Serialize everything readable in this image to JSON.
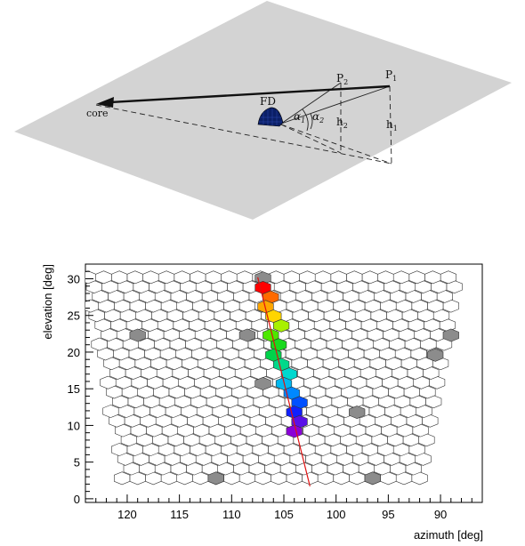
{
  "geometry_sketch": {
    "labels": {
      "core": "core",
      "fd": "FD",
      "p1": "P",
      "p1_sub": "1",
      "p2": "P",
      "p2_sub": "2",
      "alpha1": "α",
      "alpha1_sub": "1",
      "alpha2": "α",
      "alpha2_sub": "2",
      "h1": "h",
      "h1_sub": "1",
      "h2": "h",
      "h2_sub": "2"
    },
    "colors": {
      "plane": "#d3d3d3",
      "detector": "#0b1f66"
    }
  },
  "chart_data": {
    "type": "scatter",
    "title": "",
    "xlabel": "azimuth  [deg]",
    "ylabel": "elevation  [deg]",
    "xlim": [
      124,
      86
    ],
    "ylim": [
      -0.5,
      32
    ],
    "x_reversed": true,
    "xticks": [
      120,
      115,
      110,
      105,
      100,
      95,
      90
    ],
    "xtick_labels": [
      "120",
      "115",
      "110",
      "105",
      "100",
      "95",
      "90"
    ],
    "yticks": [
      0,
      5,
      10,
      15,
      20,
      25,
      30
    ],
    "ytick_labels": [
      "0",
      "5",
      "10",
      "15",
      "20",
      "25",
      "30"
    ],
    "grid": false,
    "camera": {
      "rows": 22,
      "y_start": 2.8,
      "y_step": 1.305,
      "x_step": 1.5,
      "x_base_min": 92.0,
      "x_base_max": 120.5,
      "x_top_min": 88.5,
      "x_top_max": 124.0
    },
    "triggered_pixels": [
      {
        "x": 107.0,
        "y": 28.8,
        "color": "#ff0000"
      },
      {
        "x": 106.25,
        "y": 27.5,
        "color": "#ff6a00"
      },
      {
        "x": 106.75,
        "y": 26.2,
        "color": "#ffa600"
      },
      {
        "x": 106.0,
        "y": 24.9,
        "color": "#ffd500"
      },
      {
        "x": 105.25,
        "y": 23.6,
        "color": "#a8f000"
      },
      {
        "x": 106.25,
        "y": 22.3,
        "color": "#4de800"
      },
      {
        "x": 105.5,
        "y": 21.0,
        "color": "#19d91e"
      },
      {
        "x": 106.0,
        "y": 19.6,
        "color": "#00d34a"
      },
      {
        "x": 105.25,
        "y": 18.3,
        "color": "#00d98a"
      },
      {
        "x": 104.5,
        "y": 17.0,
        "color": "#00d8cf"
      },
      {
        "x": 105.0,
        "y": 15.7,
        "color": "#00b8f0"
      },
      {
        "x": 104.25,
        "y": 14.4,
        "color": "#0088ff"
      },
      {
        "x": 103.5,
        "y": 13.1,
        "color": "#0050ff"
      },
      {
        "x": 104.0,
        "y": 11.8,
        "color": "#1020ff"
      },
      {
        "x": 103.5,
        "y": 10.5,
        "color": "#5a10e8"
      },
      {
        "x": 104.0,
        "y": 9.2,
        "color": "#8a00d8"
      }
    ],
    "gray_pixels": [
      {
        "x": 107.0,
        "y": 30.1
      },
      {
        "x": 119.0,
        "y": 22.3
      },
      {
        "x": 108.5,
        "y": 22.3
      },
      {
        "x": 89.0,
        "y": 22.3
      },
      {
        "x": 90.5,
        "y": 19.6
      },
      {
        "x": 107.0,
        "y": 15.7
      },
      {
        "x": 98.0,
        "y": 11.8
      },
      {
        "x": 111.5,
        "y": 2.8
      },
      {
        "x": 96.5,
        "y": 2.8
      }
    ],
    "fit_line": {
      "x": [
        107.5,
        102.5
      ],
      "y": [
        30.2,
        1.7
      ],
      "color": "#e01010"
    },
    "colors": {
      "pixel_stroke": "#333333",
      "gray_fill": "#8c8c8c"
    }
  }
}
